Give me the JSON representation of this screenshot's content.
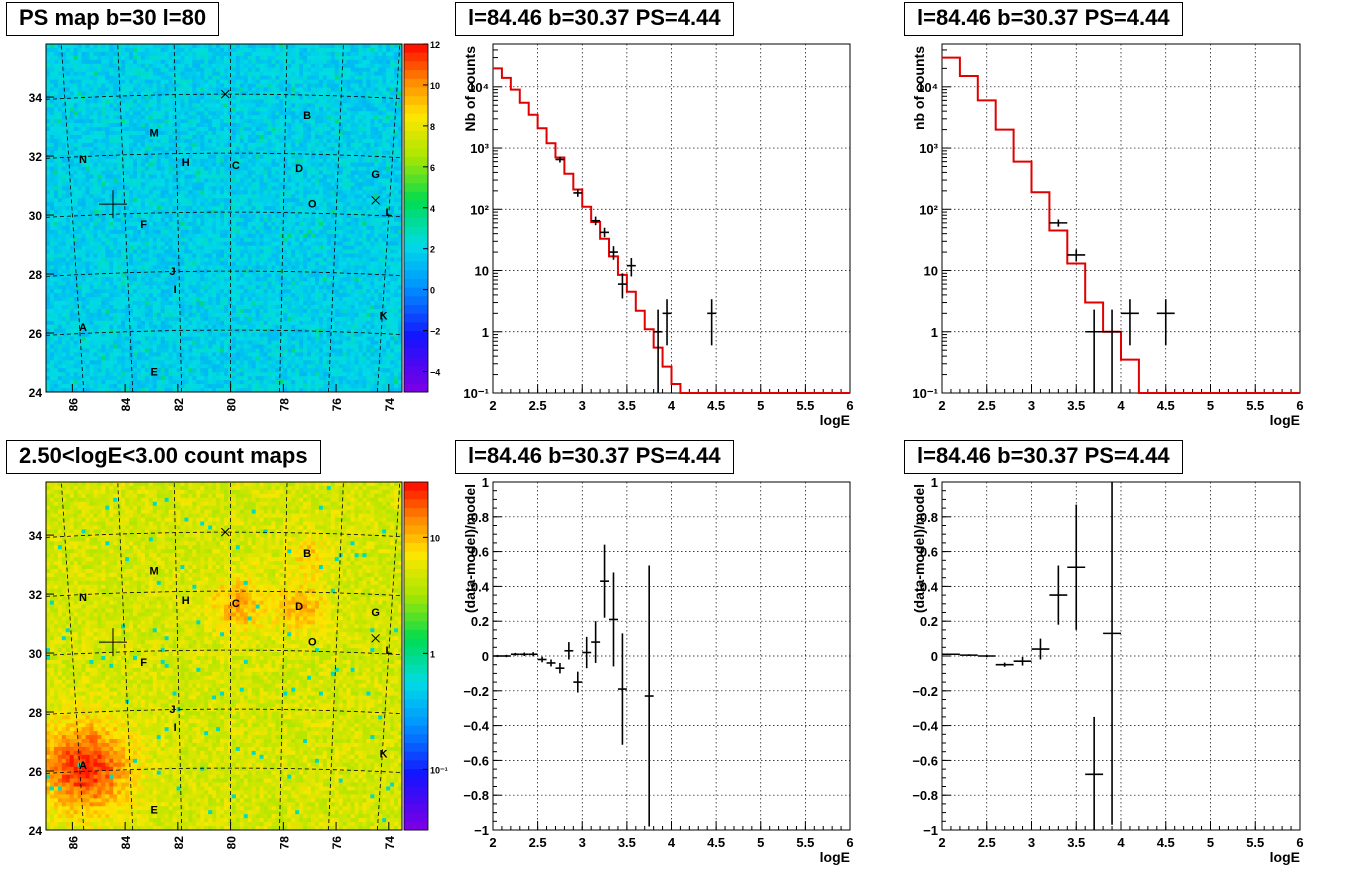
{
  "panels": {
    "map1": {
      "title": "PS map b=30 l=80",
      "xticks": [
        "86",
        "84",
        "82",
        "80",
        "78",
        "76",
        "74"
      ],
      "yticks": [
        "24",
        "26",
        "28",
        "30",
        "32",
        "34"
      ],
      "colorbar_ticks": [
        "12",
        "10",
        "8",
        "6",
        "4",
        "2",
        "0",
        "-2",
        "-4"
      ],
      "sources": [
        {
          "name": "N",
          "l": 85.6,
          "b": 31.9
        },
        {
          "name": "M",
          "l": 82.9,
          "b": 32.8
        },
        {
          "name": "H",
          "l": 81.7,
          "b": 31.8
        },
        {
          "name": "C",
          "l": 79.8,
          "b": 31.7
        },
        {
          "name": "D",
          "l": 77.4,
          "b": 31.6
        },
        {
          "name": "B",
          "l": 77.1,
          "b": 33.4
        },
        {
          "name": "G",
          "l": 74.5,
          "b": 31.4
        },
        {
          "name": "O",
          "l": 76.9,
          "b": 30.4
        },
        {
          "name": "L",
          "l": 74.0,
          "b": 30.1
        },
        {
          "name": "F",
          "l": 83.3,
          "b": 29.7
        },
        {
          "name": "J",
          "l": 82.2,
          "b": 28.1
        },
        {
          "name": "I",
          "l": 82.1,
          "b": 27.5
        },
        {
          "name": "A",
          "l": 85.6,
          "b": 26.2
        },
        {
          "name": "K",
          "l": 74.2,
          "b": 26.6
        },
        {
          "name": "E",
          "l": 82.9,
          "b": 24.7
        }
      ]
    },
    "map2": {
      "title": "2.50<logE<3.00 count maps",
      "xticks": [
        "86",
        "84",
        "82",
        "80",
        "78",
        "76",
        "74"
      ],
      "yticks": [
        "24",
        "26",
        "28",
        "30",
        "32",
        "34"
      ],
      "colorbar_ticks": [
        "10",
        "1",
        "10⁻¹"
      ]
    },
    "spec1": {
      "title": "l=84.46 b=30.37 PS=4.44",
      "ylabel": "Nb of counts",
      "xlabel": "logE"
    },
    "spec2": {
      "title": "l=84.46 b=30.37 PS=4.44",
      "ylabel": "nb of counts",
      "xlabel": "logE"
    },
    "res1": {
      "title": "l=84.46 b=30.37 PS=4.44",
      "ylabel": "(data-model)/model",
      "xlabel": "logE"
    },
    "res2": {
      "title": "l=84.46 b=30.37 PS=4.44",
      "ylabel": "(data-model)/model",
      "xlabel": "logE"
    }
  },
  "chart_data": [
    {
      "type": "line",
      "id": "spec1",
      "title": "l=84.46 b=30.37 PS=4.44",
      "xlabel": "logE",
      "ylabel": "Nb of counts",
      "xlim": [
        2,
        6
      ],
      "ylim": [
        0.1,
        50000
      ],
      "yscale": "log",
      "xticks": [
        2,
        2.5,
        3,
        3.5,
        4,
        4.5,
        5,
        5.5,
        6
      ],
      "yticks": [
        {
          "v": 0.1,
          "label": "10⁻¹"
        },
        {
          "v": 1,
          "label": "1"
        },
        {
          "v": 10,
          "label": "10"
        },
        {
          "v": 100,
          "label": "10²"
        },
        {
          "v": 1000,
          "label": "10³"
        },
        {
          "v": 10000,
          "label": "10⁴"
        }
      ],
      "grid": true,
      "model_step": {
        "edges": [
          2,
          2.1,
          2.2,
          2.3,
          2.4,
          2.5,
          2.6,
          2.7,
          2.8,
          2.9,
          3.0,
          3.1,
          3.2,
          3.3,
          3.4,
          3.5,
          3.6,
          3.7,
          3.8,
          3.9,
          4.0,
          4.1,
          4.2,
          6.0
        ],
        "values": [
          20000,
          14000,
          9000,
          5500,
          3500,
          2100,
          1200,
          700,
          380,
          210,
          110,
          62,
          33,
          17,
          8.5,
          4.5,
          2.2,
          1.1,
          0.55,
          0.27,
          0.14,
          0.1,
          0.1
        ]
      },
      "data_points": [
        {
          "x": 2.75,
          "y": 650,
          "xerr": 0.05,
          "ylo": 580,
          "yhi": 720
        },
        {
          "x": 2.95,
          "y": 185,
          "xerr": 0.05,
          "ylo": 160,
          "yhi": 210
        },
        {
          "x": 3.15,
          "y": 65,
          "xerr": 0.05,
          "ylo": 55,
          "yhi": 76
        },
        {
          "x": 3.25,
          "y": 42,
          "xerr": 0.05,
          "ylo": 35,
          "yhi": 50
        },
        {
          "x": 3.35,
          "y": 20,
          "xerr": 0.05,
          "ylo": 15,
          "yhi": 25
        },
        {
          "x": 3.45,
          "y": 6,
          "xerr": 0.05,
          "ylo": 3.5,
          "yhi": 9
        },
        {
          "x": 3.55,
          "y": 12,
          "xerr": 0.05,
          "ylo": 8,
          "yhi": 16
        },
        {
          "x": 3.85,
          "y": 1,
          "xerr": 0.05,
          "ylo": 0.1,
          "yhi": 2.3
        },
        {
          "x": 3.95,
          "y": 2,
          "xerr": 0.05,
          "ylo": 0.6,
          "yhi": 3.4
        },
        {
          "x": 4.45,
          "y": 2,
          "xerr": 0.05,
          "ylo": 0.6,
          "yhi": 3.4
        }
      ]
    },
    {
      "type": "line",
      "id": "spec2",
      "title": "l=84.46 b=30.37 PS=4.44",
      "xlabel": "logE",
      "ylabel": "nb of counts",
      "xlim": [
        2,
        6
      ],
      "ylim": [
        0.1,
        50000
      ],
      "yscale": "log",
      "xticks": [
        2,
        2.5,
        3,
        3.5,
        4,
        4.5,
        5,
        5.5,
        6
      ],
      "yticks": [
        {
          "v": 0.1,
          "label": "10⁻¹"
        },
        {
          "v": 1,
          "label": "1"
        },
        {
          "v": 10,
          "label": "10"
        },
        {
          "v": 100,
          "label": "10²"
        },
        {
          "v": 1000,
          "label": "10³"
        },
        {
          "v": 10000,
          "label": "10⁴"
        }
      ],
      "grid": true,
      "model_step": {
        "edges": [
          2,
          2.2,
          2.4,
          2.6,
          2.8,
          3.0,
          3.2,
          3.4,
          3.6,
          3.8,
          4.0,
          4.2,
          6.0
        ],
        "values": [
          30000,
          15000,
          6000,
          2000,
          600,
          190,
          45,
          13,
          3,
          1,
          0.35,
          0.1
        ]
      },
      "data_points": [
        {
          "x": 3.3,
          "y": 60,
          "xerr": 0.1,
          "ylo": 52,
          "yhi": 68
        },
        {
          "x": 3.5,
          "y": 18,
          "xerr": 0.1,
          "ylo": 14,
          "yhi": 22
        },
        {
          "x": 3.7,
          "y": 1,
          "xerr": 0.1,
          "ylo": 0.1,
          "yhi": 2.3
        },
        {
          "x": 3.9,
          "y": 1,
          "xerr": 0.1,
          "ylo": 0.1,
          "yhi": 2.3
        },
        {
          "x": 4.1,
          "y": 2,
          "xerr": 0.1,
          "ylo": 0.6,
          "yhi": 3.4
        },
        {
          "x": 4.5,
          "y": 2,
          "xerr": 0.1,
          "ylo": 0.6,
          "yhi": 3.4
        }
      ]
    },
    {
      "type": "scatter",
      "id": "res1",
      "title": "l=84.46 b=30.37 PS=4.44",
      "xlabel": "logE",
      "ylabel": "(data-model)/model",
      "xlim": [
        2,
        6
      ],
      "ylim": [
        -1,
        1
      ],
      "xticks": [
        2,
        2.5,
        3,
        3.5,
        4,
        4.5,
        5,
        5.5,
        6
      ],
      "yticks": [
        -1,
        -0.8,
        -0.6,
        -0.4,
        -0.2,
        0,
        0.2,
        0.4,
        0.6,
        0.8,
        1
      ],
      "grid": true,
      "data_points": [
        {
          "x": 2.05,
          "y": 0.0,
          "xerr": 0.05,
          "yerr": 0.006
        },
        {
          "x": 2.15,
          "y": 0.0,
          "xerr": 0.05,
          "yerr": 0.007
        },
        {
          "x": 2.25,
          "y": 0.01,
          "xerr": 0.05,
          "yerr": 0.008
        },
        {
          "x": 2.35,
          "y": 0.01,
          "xerr": 0.05,
          "yerr": 0.01
        },
        {
          "x": 2.45,
          "y": 0.01,
          "xerr": 0.05,
          "yerr": 0.012
        },
        {
          "x": 2.55,
          "y": -0.02,
          "xerr": 0.05,
          "yerr": 0.016
        },
        {
          "x": 2.65,
          "y": -0.04,
          "xerr": 0.05,
          "yerr": 0.02
        },
        {
          "x": 2.75,
          "y": -0.07,
          "xerr": 0.05,
          "yerr": 0.03
        },
        {
          "x": 2.85,
          "y": 0.03,
          "xerr": 0.05,
          "yerr": 0.05
        },
        {
          "x": 2.95,
          "y": -0.15,
          "xerr": 0.05,
          "yerr": 0.06
        },
        {
          "x": 3.05,
          "y": 0.02,
          "xerr": 0.05,
          "yerr": 0.09
        },
        {
          "x": 3.15,
          "y": 0.08,
          "xerr": 0.05,
          "yerr": 0.12
        },
        {
          "x": 3.25,
          "y": 0.43,
          "xerr": 0.05,
          "yerr": 0.21
        },
        {
          "x": 3.35,
          "y": 0.21,
          "xerr": 0.05,
          "yerr": 0.27
        },
        {
          "x": 3.45,
          "y": -0.19,
          "xerr": 0.05,
          "yerr": 0.32
        },
        {
          "x": 3.75,
          "y": -0.23,
          "xerr": 0.05,
          "yerr": 0.75
        }
      ]
    },
    {
      "type": "scatter",
      "id": "res2",
      "title": "l=84.46 b=30.37 PS=4.44",
      "xlabel": "logE",
      "ylabel": "(data-model)/model",
      "xlim": [
        2,
        6
      ],
      "ylim": [
        -1,
        1
      ],
      "xticks": [
        2,
        2.5,
        3,
        3.5,
        4,
        4.5,
        5,
        5.5,
        6
      ],
      "yticks": [
        -1,
        -0.8,
        -0.6,
        -0.4,
        -0.2,
        0,
        0.2,
        0.4,
        0.6,
        0.8,
        1
      ],
      "grid": true,
      "data_points": [
        {
          "x": 2.1,
          "y": 0.01,
          "xerr": 0.1,
          "yerr": 0.004
        },
        {
          "x": 2.3,
          "y": 0.005,
          "xerr": 0.1,
          "yerr": 0.005
        },
        {
          "x": 2.5,
          "y": 0.0,
          "xerr": 0.1,
          "yerr": 0.007
        },
        {
          "x": 2.7,
          "y": -0.05,
          "xerr": 0.1,
          "yerr": 0.012
        },
        {
          "x": 2.9,
          "y": -0.03,
          "xerr": 0.1,
          "yerr": 0.025
        },
        {
          "x": 3.1,
          "y": 0.04,
          "xerr": 0.1,
          "yerr": 0.06
        },
        {
          "x": 3.3,
          "y": 0.35,
          "xerr": 0.1,
          "yerr": 0.17
        },
        {
          "x": 3.5,
          "y": 0.51,
          "xerr": 0.1,
          "yerr": 0.36
        },
        {
          "x": 3.7,
          "y": -0.68,
          "xerr": 0.1,
          "yerr": 0.33
        },
        {
          "x": 3.9,
          "y": 0.13,
          "xerr": 0.1,
          "yerr": 1.1
        }
      ]
    },
    {
      "type": "heatmap",
      "id": "map1",
      "title": "PS map b=30 l=80",
      "xlim": [
        87,
        73.5
      ],
      "ylim": [
        24,
        35.8
      ],
      "zlim": [
        -5,
        12
      ],
      "colorbar_ticks": [
        12,
        10,
        8,
        6,
        4,
        2,
        0,
        -2,
        -4
      ]
    },
    {
      "type": "heatmap",
      "id": "map2",
      "title": "2.50<logE<3.00 count maps",
      "xlim": [
        87,
        73.5
      ],
      "ylim": [
        24,
        35.8
      ],
      "zscale": "log",
      "zlim": [
        0.03,
        30
      ],
      "colorbar_ticks": [
        "10",
        "1",
        "10⁻¹"
      ]
    }
  ]
}
